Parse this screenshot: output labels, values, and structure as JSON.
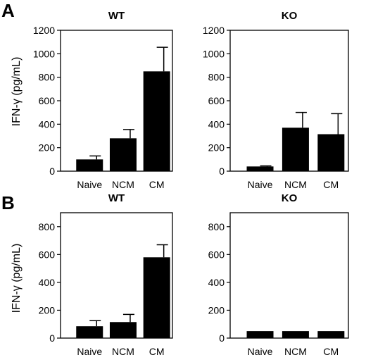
{
  "panels": {
    "A": {
      "letter": "A",
      "ylabel": "IFN-γ (pg/mL)"
    },
    "B": {
      "letter": "B",
      "ylabel": "IFN-γ (pg/mL)"
    }
  },
  "chart_data": [
    {
      "type": "bar",
      "panel": "A",
      "title": "WT",
      "categories": [
        "Naive",
        "NCM",
        "CM"
      ],
      "values": [
        100,
        280,
        850
      ],
      "errors": [
        30,
        75,
        205
      ],
      "ylim": [
        0,
        1200
      ],
      "yticks": [
        0,
        200,
        400,
        600,
        800,
        1000,
        1200
      ],
      "bar_color": "#000000"
    },
    {
      "type": "bar",
      "panel": "A",
      "title": "KO",
      "categories": [
        "Naive",
        "NCM",
        "CM"
      ],
      "values": [
        40,
        370,
        315
      ],
      "errors": [
        5,
        130,
        175
      ],
      "ylim": [
        0,
        1200
      ],
      "yticks": [
        0,
        200,
        400,
        600,
        800,
        1000,
        1200
      ],
      "bar_color": "#000000"
    },
    {
      "type": "bar",
      "panel": "B",
      "title": "WT",
      "categories": [
        "Naive",
        "NCM",
        "CM"
      ],
      "values": [
        85,
        115,
        580
      ],
      "errors": [
        40,
        55,
        90
      ],
      "ylim": [
        0,
        900
      ],
      "yticks": [
        0,
        200,
        400,
        600,
        800
      ],
      "bar_color": "#000000"
    },
    {
      "type": "bar",
      "panel": "B",
      "title": "KO",
      "categories": [
        "Naive",
        "NCM",
        "CM"
      ],
      "values": [
        50,
        50,
        50
      ],
      "errors": [
        0,
        0,
        0
      ],
      "ylim": [
        0,
        900
      ],
      "yticks": [
        0,
        200,
        400,
        600,
        800
      ],
      "bar_color": "#000000"
    }
  ]
}
